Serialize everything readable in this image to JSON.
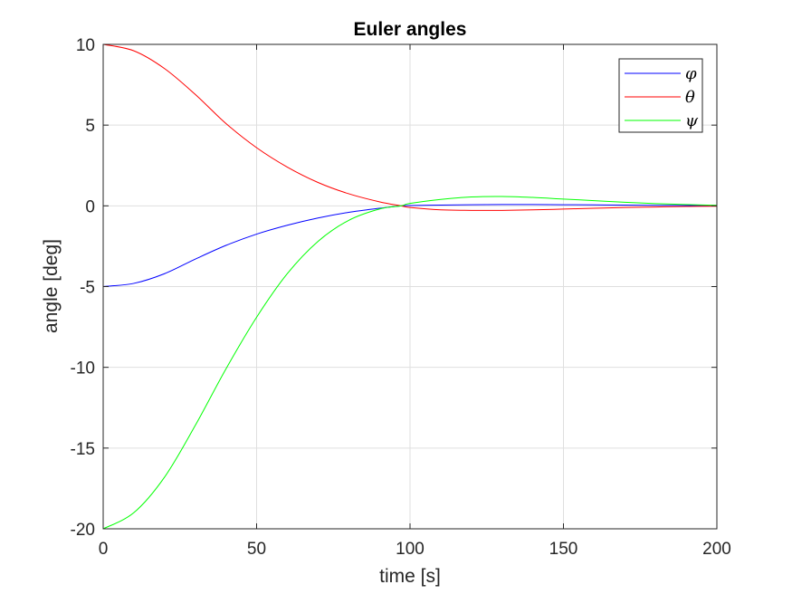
{
  "chart_data": {
    "type": "line",
    "title": "Euler angles",
    "xlabel": "time [s]",
    "ylabel": "angle [deg]",
    "xlim": [
      0,
      200
    ],
    "ylim": [
      -20,
      10
    ],
    "xticks": [
      0,
      50,
      100,
      150,
      200
    ],
    "yticks": [
      -20,
      -15,
      -10,
      -5,
      0,
      5,
      10
    ],
    "grid": true,
    "legend_position": "top-right",
    "x": [
      0,
      10,
      20,
      30,
      40,
      50,
      60,
      70,
      80,
      90,
      97,
      100,
      110,
      120,
      130,
      140,
      150,
      160,
      170,
      180,
      190,
      200
    ],
    "series": [
      {
        "name": "φ",
        "color": "#0000ff",
        "values": [
          -5.0,
          -4.8,
          -4.2,
          -3.3,
          -2.45,
          -1.75,
          -1.2,
          -0.75,
          -0.4,
          -0.15,
          0.0,
          0.02,
          0.05,
          0.07,
          0.08,
          0.08,
          0.07,
          0.06,
          0.05,
          0.03,
          0.02,
          0.01
        ]
      },
      {
        "name": "θ",
        "color": "#ff0000",
        "values": [
          10.0,
          9.6,
          8.5,
          6.9,
          5.1,
          3.6,
          2.4,
          1.45,
          0.75,
          0.25,
          0.0,
          -0.1,
          -0.25,
          -0.28,
          -0.28,
          -0.25,
          -0.2,
          -0.15,
          -0.1,
          -0.07,
          -0.04,
          -0.02
        ]
      },
      {
        "name": "ψ",
        "color": "#00ff00",
        "values": [
          -20.0,
          -19.0,
          -16.8,
          -13.6,
          -10.1,
          -6.9,
          -4.2,
          -2.2,
          -0.9,
          -0.2,
          0.0,
          0.15,
          0.4,
          0.55,
          0.58,
          0.52,
          0.42,
          0.32,
          0.22,
          0.14,
          0.08,
          0.03
        ]
      }
    ]
  }
}
